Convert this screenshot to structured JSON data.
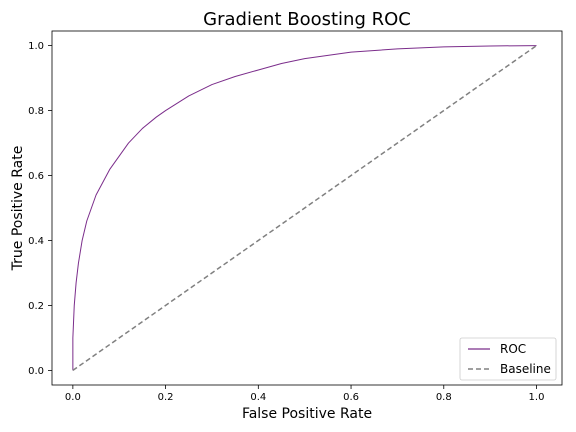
{
  "chart_data": {
    "type": "line",
    "title": "Gradient Boosting ROC",
    "xlabel": "False Positive Rate",
    "ylabel": "True Positive Rate",
    "xlim": [
      -0.045,
      1.055
    ],
    "ylim": [
      -0.045,
      1.045
    ],
    "xticks": [
      "0.0",
      "0.2",
      "0.4",
      "0.6",
      "0.8",
      "1.0"
    ],
    "yticks": [
      "0.0",
      "0.2",
      "0.4",
      "0.6",
      "0.8",
      "1.0"
    ],
    "grid": false,
    "legend_position": "bottom-right",
    "series": [
      {
        "name": "ROC",
        "color": "#7b2d8b",
        "style": "solid",
        "x": [
          0.0,
          0.0,
          0.003,
          0.007,
          0.012,
          0.02,
          0.03,
          0.04,
          0.05,
          0.065,
          0.08,
          0.1,
          0.12,
          0.15,
          0.18,
          0.2,
          0.25,
          0.3,
          0.35,
          0.4,
          0.45,
          0.5,
          0.6,
          0.7,
          0.8,
          0.9,
          1.0
        ],
        "y": [
          0.0,
          0.1,
          0.2,
          0.27,
          0.33,
          0.4,
          0.46,
          0.5,
          0.54,
          0.58,
          0.62,
          0.66,
          0.7,
          0.745,
          0.78,
          0.8,
          0.845,
          0.88,
          0.905,
          0.925,
          0.945,
          0.96,
          0.98,
          0.99,
          0.996,
          0.999,
          1.0
        ]
      },
      {
        "name": "Baseline",
        "color": "#808080",
        "style": "dashed",
        "x": [
          0.0,
          1.0
        ],
        "y": [
          0.0,
          1.0
        ]
      }
    ]
  }
}
